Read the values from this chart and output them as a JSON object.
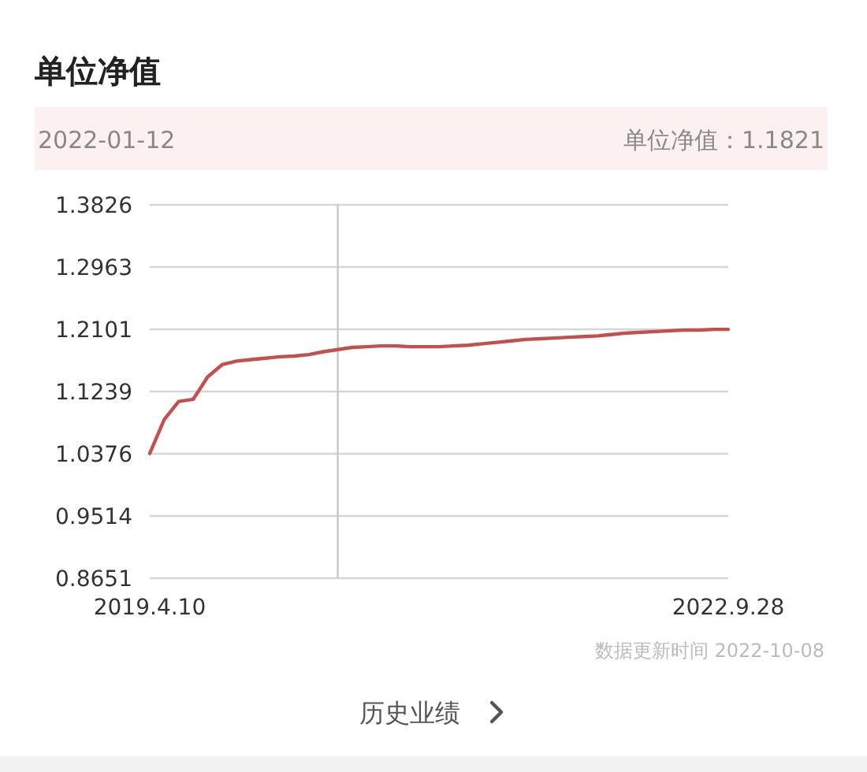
{
  "chart_data": {
    "type": "line",
    "title": "单位净值",
    "categories": [
      "2019.4.10",
      null,
      null,
      null,
      null,
      null,
      null,
      null,
      null,
      null,
      null,
      null,
      null,
      null,
      null,
      null,
      null,
      null,
      null,
      null,
      null,
      null,
      null,
      null,
      null,
      null,
      null,
      null,
      null,
      null,
      null,
      null,
      null,
      null,
      null,
      null,
      null,
      null,
      null,
      null,
      "2022.9.28"
    ],
    "series": [
      {
        "color": "#c4504e",
        "values": [
          1.038,
          1.085,
          1.11,
          1.113,
          1.144,
          1.161,
          1.166,
          1.168,
          1.17,
          1.172,
          1.173,
          1.175,
          1.179,
          1.182,
          1.185,
          1.186,
          1.187,
          1.187,
          1.186,
          1.186,
          1.186,
          1.187,
          1.188,
          1.19,
          1.192,
          1.194,
          1.196,
          1.197,
          1.198,
          1.199,
          1.2,
          1.201,
          1.203,
          1.205,
          1.206,
          1.207,
          1.208,
          1.209,
          1.209,
          1.21,
          1.21
        ]
      }
    ],
    "ylim": [
      0.8651,
      1.3826
    ],
    "yticks": [
      0.8651,
      0.9514,
      1.0376,
      1.1239,
      1.2101,
      1.2963,
      1.3826
    ],
    "grid": "y",
    "annotations": [
      "2022-01-12",
      "单位净值：1.1821",
      "数据更新时间 2022-10-08",
      "历史业绩"
    ]
  }
}
